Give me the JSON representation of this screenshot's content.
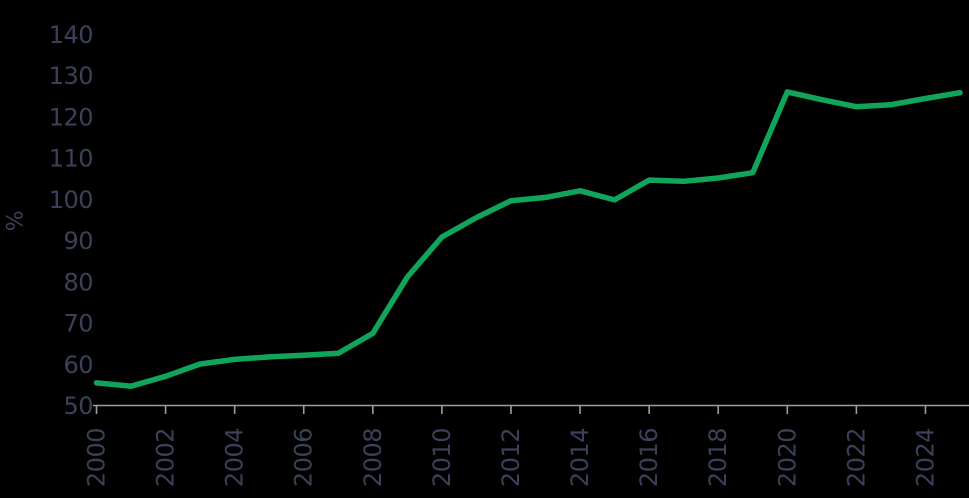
{
  "page": {
    "background_color": "#000000"
  },
  "chart_data": {
    "type": "line",
    "title": "",
    "xlabel": "",
    "ylabel": "%",
    "x": [
      2000,
      2001,
      2002,
      2003,
      2004,
      2005,
      2006,
      2007,
      2008,
      2009,
      2010,
      2011,
      2012,
      2013,
      2014,
      2015,
      2016,
      2017,
      2018,
      2019,
      2020,
      2021,
      2022,
      2023,
      2024,
      2025
    ],
    "series": [
      {
        "name": "percent-of-gdp-line",
        "color": "#10a55b",
        "stroke_width": 5.5,
        "values": [
          55.6,
          54.8,
          57.2,
          60.2,
          61.3,
          61.9,
          62.3,
          62.8,
          67.6,
          81.3,
          91.0,
          95.7,
          99.8,
          100.6,
          102.2,
          100.0,
          104.8,
          104.5,
          105.3,
          106.6,
          126.2,
          124.3,
          122.6,
          123.1,
          124.6,
          126.0
        ]
      }
    ],
    "xticks": [
      2000,
      2002,
      2004,
      2006,
      2008,
      2010,
      2012,
      2014,
      2016,
      2018,
      2020,
      2022,
      2024
    ],
    "yticks": [
      50,
      60,
      70,
      80,
      90,
      100,
      110,
      120,
      130,
      140
    ],
    "ylim": [
      50,
      140
    ],
    "xlim": [
      2000,
      2025.3
    ],
    "grid": false,
    "legend": "none",
    "x_tick_label_rotation_deg": -90,
    "axis_color": "#9b9daa",
    "tick_label_color": "#3b4158",
    "background_color": "#000000"
  }
}
